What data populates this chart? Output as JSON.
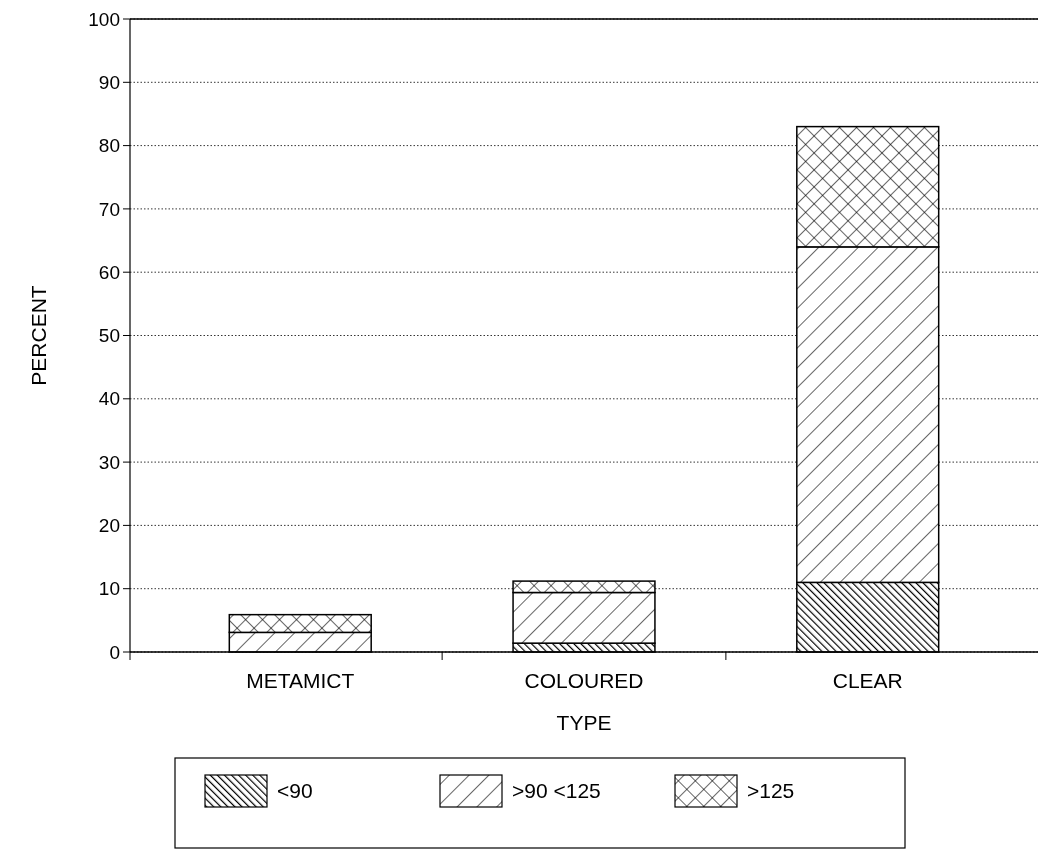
{
  "chart_data": {
    "type": "bar",
    "stacked": true,
    "xlabel": "TYPE",
    "ylabel": "PERCENT",
    "categories": [
      "METAMICT",
      "COLOURED",
      "CLEAR"
    ],
    "series": [
      {
        "name": "<90",
        "color": "#000000",
        "values": [
          0,
          1.4,
          11
        ]
      },
      {
        "name": ">90 <125",
        "color": "#000000",
        "values": [
          3.1,
          8,
          53
        ]
      },
      {
        "name": ">125",
        "color": "#000000",
        "values": [
          2.8,
          1.8,
          19
        ]
      }
    ],
    "ylim": [
      0,
      100
    ],
    "yticks": [
      0,
      10,
      20,
      30,
      40,
      50,
      60,
      70,
      80,
      90,
      100
    ],
    "grid": "y",
    "legend": "bottom"
  }
}
